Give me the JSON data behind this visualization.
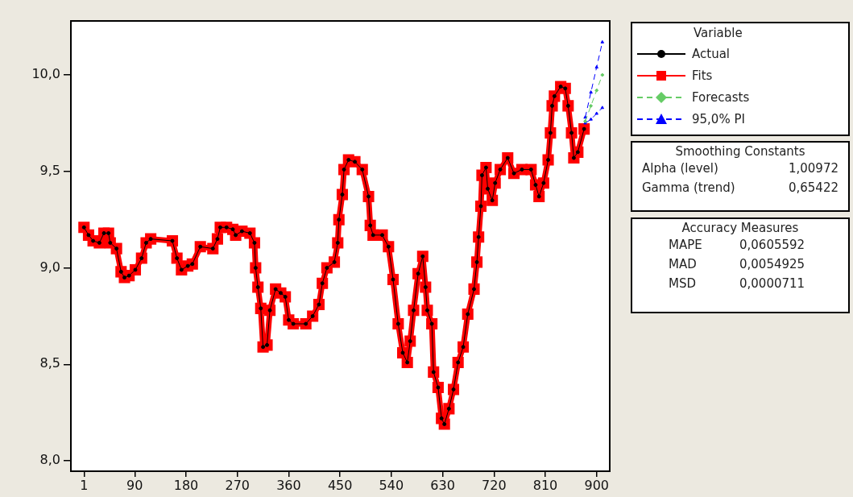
{
  "chart_data": {
    "type": "line",
    "legend_title": "Variable",
    "legend": "top right",
    "x": [
      1,
      9,
      17,
      28,
      36,
      44,
      47,
      58,
      66,
      72,
      80,
      91,
      102,
      110,
      118,
      156,
      164,
      172,
      183,
      191,
      205,
      227,
      235,
      240,
      251,
      262,
      267,
      278,
      292,
      300,
      302,
      306,
      311,
      315,
      322,
      327,
      337,
      346,
      354,
      360,
      368,
      390,
      402,
      413,
      419,
      427,
      440,
      446,
      448,
      454,
      457,
      465,
      476,
      489,
      500,
      503,
      508,
      524,
      535,
      543,
      552,
      560,
      568,
      573,
      579,
      587,
      595,
      600,
      603,
      611,
      614,
      622,
      628,
      633,
      641,
      649,
      657,
      666,
      674,
      685,
      690,
      693,
      697,
      699,
      706,
      709,
      717,
      722,
      731,
      744,
      755,
      769,
      785,
      793,
      799,
      807,
      815,
      819,
      822,
      826,
      837,
      845,
      850,
      856,
      860,
      867,
      878
    ],
    "series": [
      {
        "name": "Actual",
        "color": "#000000",
        "marker": "circle",
        "line_style": "solid",
        "values": [
          9.21,
          9.17,
          9.14,
          9.13,
          9.18,
          9.18,
          9.13,
          9.1,
          8.98,
          8.95,
          8.96,
          8.99,
          9.05,
          9.13,
          9.15,
          9.14,
          9.05,
          8.99,
          9.01,
          9.02,
          9.11,
          9.1,
          9.15,
          9.21,
          9.21,
          9.2,
          9.17,
          9.19,
          9.18,
          9.13,
          9.0,
          8.9,
          8.79,
          8.59,
          8.6,
          8.78,
          8.89,
          8.87,
          8.85,
          8.73,
          8.71,
          8.71,
          8.75,
          8.81,
          8.92,
          9.0,
          9.03,
          9.13,
          9.25,
          9.38,
          9.51,
          9.56,
          9.55,
          9.51,
          9.37,
          9.22,
          9.17,
          9.17,
          9.11,
          8.94,
          8.71,
          8.56,
          8.51,
          8.62,
          8.78,
          8.97,
          9.06,
          8.9,
          8.78,
          8.71,
          8.46,
          8.38,
          8.22,
          8.19,
          8.27,
          8.37,
          8.51,
          8.59,
          8.76,
          8.89,
          9.03,
          9.16,
          9.32,
          9.48,
          9.52,
          9.41,
          9.35,
          9.44,
          9.51,
          9.57,
          9.49,
          9.51,
          9.51,
          9.43,
          9.37,
          9.44,
          9.56,
          9.7,
          9.84,
          9.89,
          9.94,
          9.93,
          9.84,
          9.7,
          9.57,
          9.6,
          9.72
        ]
      },
      {
        "name": "Fits",
        "color": "#ff0000",
        "marker": "square",
        "line_style": "solid",
        "values": [
          9.21,
          9.17,
          9.14,
          9.13,
          9.18,
          9.18,
          9.13,
          9.1,
          8.98,
          8.95,
          8.96,
          8.99,
          9.05,
          9.13,
          9.15,
          9.14,
          9.05,
          8.99,
          9.01,
          9.02,
          9.11,
          9.1,
          9.15,
          9.21,
          9.21,
          9.2,
          9.17,
          9.19,
          9.18,
          9.13,
          9.0,
          8.9,
          8.79,
          8.59,
          8.6,
          8.78,
          8.89,
          8.87,
          8.85,
          8.73,
          8.71,
          8.71,
          8.75,
          8.81,
          8.92,
          9.0,
          9.03,
          9.13,
          9.25,
          9.38,
          9.51,
          9.56,
          9.55,
          9.51,
          9.37,
          9.22,
          9.17,
          9.17,
          9.11,
          8.94,
          8.71,
          8.56,
          8.51,
          8.62,
          8.78,
          8.97,
          9.06,
          8.9,
          8.78,
          8.71,
          8.46,
          8.38,
          8.22,
          8.19,
          8.27,
          8.37,
          8.51,
          8.59,
          8.76,
          8.89,
          9.03,
          9.16,
          9.32,
          9.48,
          9.52,
          9.41,
          9.35,
          9.44,
          9.51,
          9.57,
          9.49,
          9.51,
          9.51,
          9.43,
          9.37,
          9.44,
          9.56,
          9.7,
          9.84,
          9.89,
          9.94,
          9.93,
          9.84,
          9.7,
          9.57,
          9.6,
          9.72
        ]
      },
      {
        "name": "Forecasts",
        "color": "#66cc66",
        "marker": "diamond",
        "line_style": "dashed",
        "x": [
          880,
          890,
          900,
          910
        ],
        "values": [
          9.76,
          9.84,
          9.92,
          10.0
        ]
      },
      {
        "name": "95,0% PI",
        "color": "#0000ff",
        "marker": "triangle",
        "line_style": "dashed",
        "x": [
          880,
          890,
          900,
          910
        ],
        "values": [
          9.78,
          9.91,
          10.04,
          10.17
        ]
      },
      {
        "color": "#0000ff",
        "marker": "triangle",
        "line_style": "dashed",
        "x": [
          880,
          890,
          900,
          910
        ],
        "values": [
          9.75,
          9.77,
          9.8,
          9.83
        ]
      }
    ],
    "xlim": [
      -22,
      923
    ],
    "xticks": [
      1,
      90,
      180,
      270,
      360,
      450,
      540,
      630,
      720,
      810,
      900
    ],
    "ylim": [
      7.946,
      10.28
    ],
    "yticks": [
      {
        "value": 8,
        "label": "8,0"
      },
      {
        "value": 8.5,
        "label": "8,5"
      },
      {
        "value": 9,
        "label": "9,0"
      },
      {
        "value": 9.5,
        "label": "9,5"
      },
      {
        "value": 10,
        "label": "10,0"
      }
    ],
    "annotations": [
      "Smoothing Constants",
      "Alpha (level) 1,00972",
      "Gamma (trend) 0,65422",
      "Accuracy Measures",
      "MAPE 0,0605592",
      "MAD 0,0054925",
      "MSD 0,0000711"
    ]
  }
}
